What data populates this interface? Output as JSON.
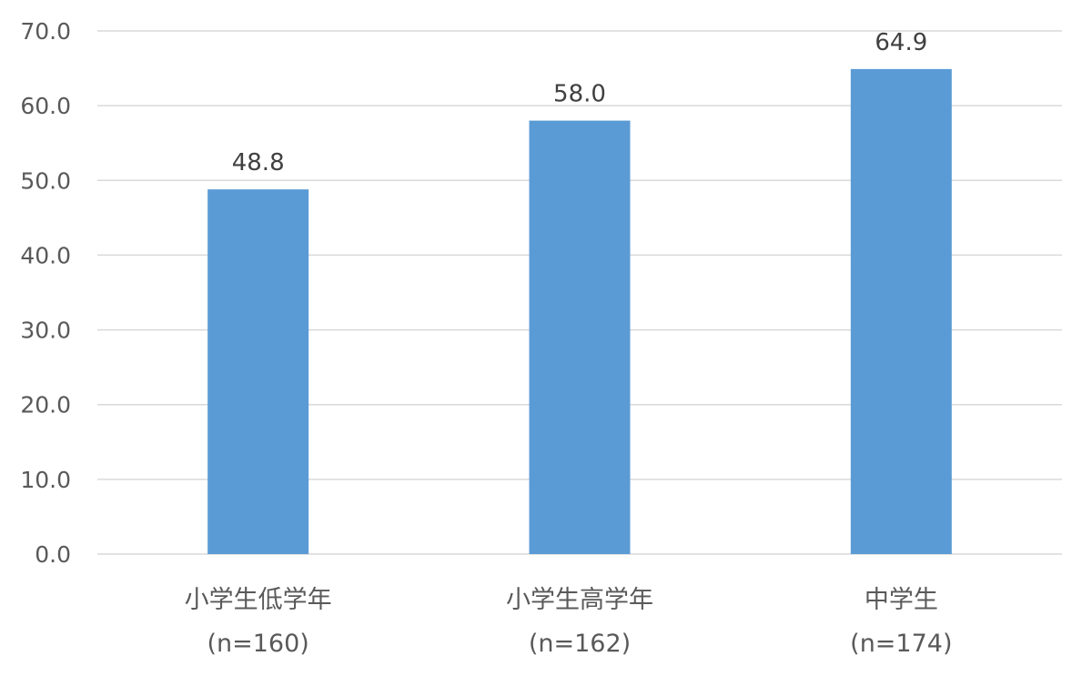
{
  "chart_data": {
    "type": "bar",
    "categories": [
      {
        "name": "小学生低学年",
        "n": "(n=160)"
      },
      {
        "name": "小学生高学年",
        "n": "(n=162)"
      },
      {
        "name": "中学生",
        "n": "(n=174)"
      }
    ],
    "values": [
      48.8,
      58.0,
      64.9
    ],
    "value_labels": [
      "48.8",
      "58.0",
      "64.9"
    ],
    "ylim": [
      0,
      70
    ],
    "yticks": [
      "0.0",
      "10.0",
      "20.0",
      "30.0",
      "40.0",
      "50.0",
      "60.0",
      "70.0"
    ],
    "grid": true,
    "bar_color": "#5b9bd5",
    "title": "",
    "xlabel": "",
    "ylabel": ""
  }
}
